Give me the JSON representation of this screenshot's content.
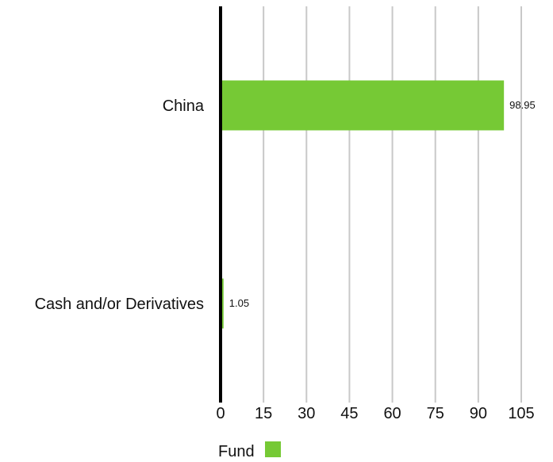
{
  "chart_data": {
    "type": "bar",
    "orientation": "horizontal",
    "categories": [
      "China",
      "Cash and/or Derivatives"
    ],
    "series": [
      {
        "name": "Fund",
        "values": [
          98.95,
          1.05
        ],
        "labels": [
          "98.95",
          "1.05"
        ],
        "color": "#76c935"
      }
    ],
    "xlim": [
      0,
      105
    ],
    "xticks": [
      0,
      15,
      30,
      45,
      60,
      75,
      90,
      105
    ],
    "xtick_labels": [
      "0",
      "15",
      "30",
      "45",
      "60",
      "75",
      "90",
      "105"
    ],
    "grid": "vertical",
    "gridline_color": "#c8c8c8",
    "axis_color": "#000000",
    "legend_position": "bottom-left"
  }
}
